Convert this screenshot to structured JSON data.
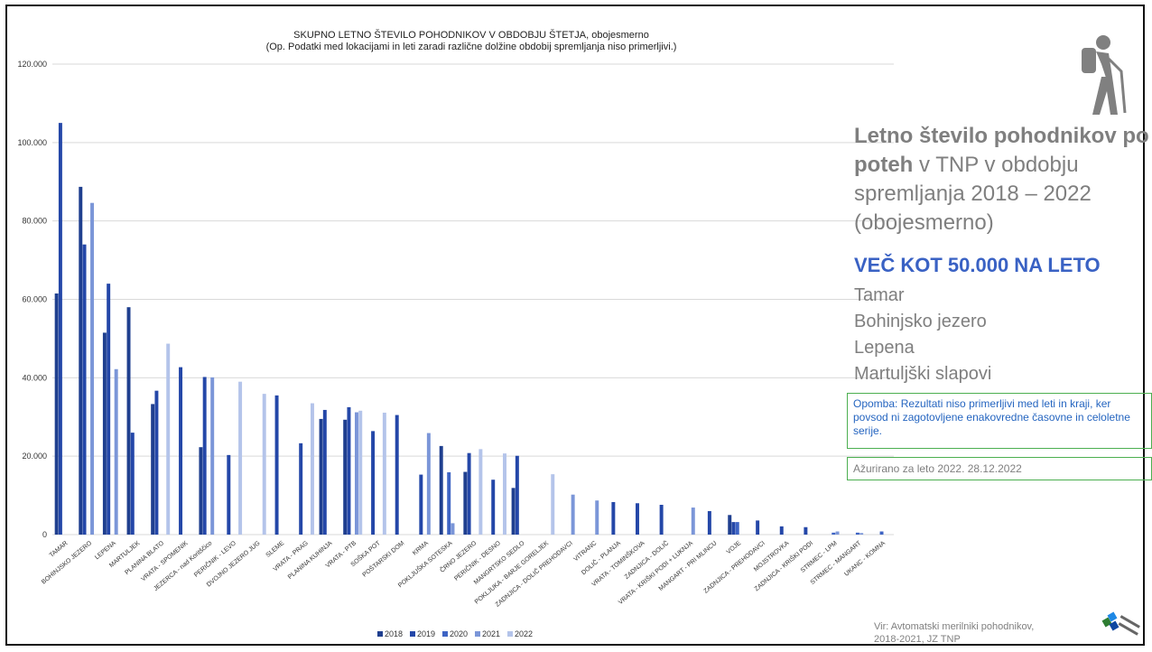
{
  "chart_data": {
    "type": "bar",
    "title": "SKUPNO LETNO ŠTEVILO POHODNIKOV V OBDOBJU ŠTETJA, obojesmerno",
    "subtitle": "(Op. Podatki med lokacijami in leti zaradi različne dolžine obdobij spremljanja niso primerljivi.)",
    "ylim": [
      0,
      120000
    ],
    "yticks": [
      "0",
      "20.000",
      "40.000",
      "60.000",
      "80.000",
      "100.000",
      "120.000"
    ],
    "grid": true,
    "legend_position": "bottom",
    "categories": [
      "TAMAR",
      "BOHINJSKO JEZERO",
      "LEPENA",
      "MARTULJEK",
      "PLANINA BLATO",
      "VRATA - SPOMENIK",
      "JEZERCA - nad Koritščico",
      "PERIČNIK - LEVO",
      "DVOJNO JEZERO JUG",
      "SLEME",
      "VRATA - PRAG",
      "PLANINA KUHINJA",
      "VRATA - PTB",
      "SOŠKA POT",
      "POŠTARSKI DOM",
      "KRMA",
      "POKLJUŠKA SOTESKA",
      "ČRNO JEZERO",
      "PERIČNIK - DESNO",
      "MANGRTSKO SEDLO",
      "POKLJUKA - BARJE GORELJEK",
      "ZADNJICA - DOLIČ PREHODAVCI",
      "VITRANC",
      "DOLIČ - PLANJA",
      "VRATA - TOMINŠKOVA",
      "ZADNJICA - DOLIČ",
      "VRATA - KRIŠKI PODI + LUKNJA",
      "MANGART - PRI MLINCU",
      "VOJE",
      "ZADNJICA - PREHODAVCI",
      "MOJSTROVKA",
      "ZADNJICA - KRIŠKI PODI",
      "STRMEC - LPM",
      "STRMEC - MANGART",
      "UKANC - KOMNA"
    ],
    "series": [
      {
        "name": "2018",
        "color": "#1f3f8f",
        "values": [
          61500,
          88700,
          51500,
          58000,
          33300,
          0,
          22300,
          0,
          0,
          0,
          0,
          29500,
          29300,
          0,
          0,
          0,
          22600,
          16000,
          0,
          11900,
          0,
          0,
          0,
          0,
          0,
          0,
          0,
          0,
          5000,
          0,
          0,
          0,
          0,
          0,
          0
        ]
      },
      {
        "name": "2019",
        "color": "#2447a8",
        "values": [
          105000,
          74000,
          64000,
          26000,
          36700,
          42700,
          40200,
          20300,
          0,
          35500,
          23300,
          31800,
          32500,
          26400,
          30500,
          15300,
          0,
          20800,
          14000,
          20100,
          0,
          0,
          0,
          8300,
          8000,
          7600,
          0,
          6000,
          3200,
          3600,
          2100,
          1900,
          0,
          0,
          0
        ]
      },
      {
        "name": "2020",
        "color": "#3e64c4",
        "values": [
          0,
          0,
          0,
          0,
          0,
          0,
          0,
          0,
          0,
          0,
          0,
          0,
          0,
          0,
          0,
          0,
          15900,
          0,
          0,
          0,
          0,
          0,
          0,
          0,
          0,
          0,
          0,
          0,
          3200,
          0,
          0,
          0,
          500,
          500,
          800
        ]
      },
      {
        "name": "2021",
        "color": "#7b96d8",
        "values": [
          0,
          84600,
          42200,
          0,
          0,
          0,
          40100,
          0,
          0,
          0,
          0,
          0,
          31200,
          0,
          0,
          25900,
          2900,
          0,
          0,
          0,
          0,
          10200,
          8700,
          0,
          0,
          0,
          6900,
          0,
          0,
          0,
          0,
          0,
          800,
          400,
          0
        ]
      },
      {
        "name": "2022",
        "color": "#b4c4ea",
        "values": [
          0,
          0,
          0,
          0,
          48700,
          0,
          0,
          39000,
          35900,
          0,
          33500,
          0,
          31600,
          31100,
          0,
          0,
          0,
          21800,
          20700,
          0,
          15400,
          0,
          0,
          0,
          0,
          0,
          0,
          0,
          0,
          0,
          0,
          0,
          0,
          0,
          0
        ]
      }
    ]
  },
  "side": {
    "title_bold": "Letno število pohodnikov po poteh",
    "title_rest": " v TNP v obdobju spremljanja 2018 – 2022 (obojesmerno)",
    "heading": "VEČ KOT 50.000 NA LETO",
    "locations": [
      "Tamar",
      "Bohinjsko jezero",
      "Lepena",
      "Martuljški slapovi"
    ],
    "note": "Opomba: Rezultati niso primerljivi med leti in kraji, ker povsod ni zagotovljene enakovredne časovne in celoletne serije.",
    "updated": "Ažurirano za leto 2022. 28.12.2022",
    "source": "Vir: Avtomatski merilniki pohodnikov, 2018-2021, JZ TNP"
  }
}
